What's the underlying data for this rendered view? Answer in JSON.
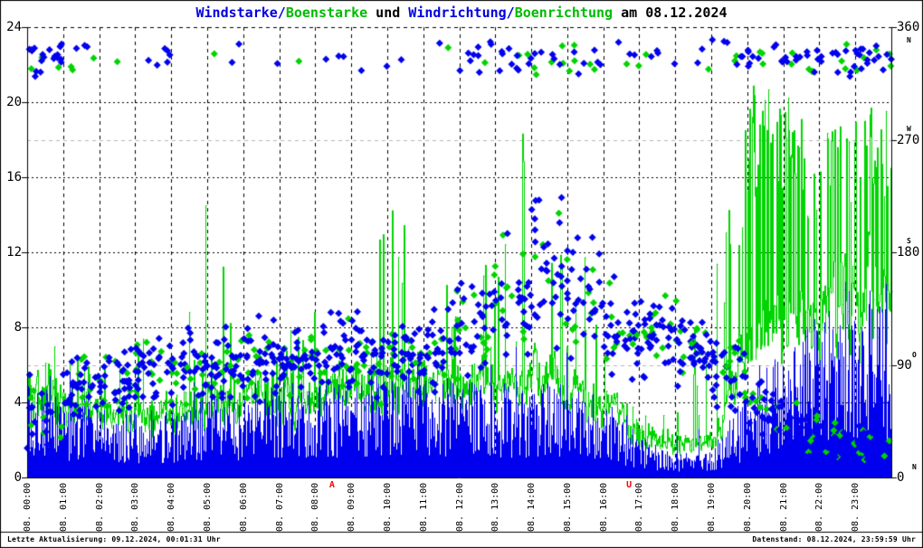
{
  "title": {
    "part1": "Windstarke/",
    "part2": "Boenstarke",
    "part3": " und ",
    "part4": "Windrichtung/",
    "part5": "Boenrichtung",
    "part6": " am 08.12.2024"
  },
  "footer": {
    "left": "Letzte Aktualisierung: 09.12.2024, 00:01:31 Uhr",
    "right": "Datenstand: 08.12.2024, 23:59:59 Uhr"
  },
  "colors": {
    "wind_blue": "#0000ee",
    "gust_green": "#00d400",
    "title_blue": "#0000dd",
    "title_green": "#00bb00",
    "marker_red": "#ff0000",
    "grid_black": "#000000",
    "grid_gray": "#b8b8b8",
    "background": "#ffffff"
  },
  "chart_data": {
    "type": "bar",
    "title": "Windstarke/Boenstarke und Windrichtung/Boenrichtung am 08.12.2024",
    "date": "08.12.2024",
    "x_axis": {
      "range_hours": [
        0,
        24
      ],
      "ticks": [
        "08. 00:00",
        "08. 01:00",
        "08. 02:00",
        "08. 03:00",
        "08. 04:00",
        "08. 05:00",
        "08. 06:00",
        "08. 07:00",
        "08. 08:00",
        "08. 09:00",
        "08. 10:00",
        "08. 11:00",
        "08. 12:00",
        "08. 13:00",
        "08. 14:00",
        "08. 15:00",
        "08. 16:00",
        "08. 17:00",
        "08. 18:00",
        "08. 19:00",
        "08. 20:00",
        "08. 21:00",
        "08. 22:00",
        "08. 23:00"
      ]
    },
    "y_left": {
      "label": "Windstarke/Boenstarke",
      "min": 0,
      "max": 24,
      "ticks": [
        "0",
        "4",
        "8",
        "12",
        "16",
        "20",
        "24"
      ],
      "tick_values": [
        0,
        4,
        8,
        12,
        16,
        20,
        24
      ]
    },
    "y_right": {
      "label": "Windrichtung/Boenrichtung",
      "min": 0,
      "max": 360,
      "ticks": [
        {
          "value": 360,
          "num": "360",
          "dir": "N",
          "dir_pos": "below"
        },
        {
          "value": 270,
          "num": "270",
          "dir": "W",
          "dir_pos": "above"
        },
        {
          "value": 180,
          "num": "180",
          "dir": "S",
          "dir_pos": "above"
        },
        {
          "value": 90,
          "num": "90",
          "dir": "O",
          "dir_pos": "above-right"
        },
        {
          "value": 0,
          "num": "0",
          "dir": "N",
          "dir_pos": "above-right"
        }
      ],
      "gray_gridlines_deg": [
        90,
        270
      ]
    },
    "series": [
      {
        "name": "Windstarke",
        "style": "impulses",
        "color": "#0000ee"
      },
      {
        "name": "Boenstarke",
        "style": "histeps",
        "color": "#00d400"
      },
      {
        "name": "Windrichtung",
        "style": "points-diamond",
        "color": "#0000ee"
      },
      {
        "name": "Boenrichtung",
        "style": "points-diamond",
        "color": "#00d400"
      }
    ],
    "hourly": {
      "hours": [
        0,
        1,
        2,
        3,
        4,
        5,
        6,
        7,
        8,
        9,
        10,
        11,
        12,
        13,
        14,
        15,
        16,
        17,
        18,
        19,
        20,
        21,
        22,
        23
      ],
      "wind_typ": [
        3.5,
        3,
        2.5,
        2.5,
        2.5,
        3,
        3,
        3.5,
        3.5,
        3.5,
        4,
        4,
        3.5,
        3.5,
        3.5,
        3.5,
        3,
        1.5,
        1,
        1.2,
        3,
        5,
        6,
        6.5
      ],
      "wind_max": [
        8,
        6,
        5,
        5,
        5,
        6,
        5,
        6,
        6,
        6,
        7,
        7,
        6,
        7,
        7,
        7,
        5,
        3,
        2.5,
        3,
        6,
        8,
        10,
        11
      ],
      "gust_typ": [
        5,
        4.5,
        4,
        4,
        4,
        5,
        5,
        5.5,
        5.5,
        6,
        6,
        6,
        6,
        6,
        7,
        6,
        5,
        2.5,
        2,
        2.5,
        10,
        11,
        11,
        12
      ],
      "gust_max": [
        8,
        7,
        6,
        7,
        10,
        15,
        8,
        9,
        9,
        12,
        15,
        14,
        9,
        13,
        21,
        16,
        8,
        5,
        4,
        12,
        21,
        21,
        18,
        20
      ],
      "gust_spike_prob": [
        0.05,
        0.04,
        0.03,
        0.03,
        0.04,
        0.05,
        0.03,
        0.05,
        0.05,
        0.06,
        0.06,
        0.06,
        0.04,
        0.08,
        0.1,
        0.08,
        0.04,
        0.02,
        0.02,
        0.05,
        0.3,
        0.3,
        0.3,
        0.3
      ],
      "dir_main_deg": [
        55,
        70,
        75,
        85,
        85,
        90,
        95,
        95,
        100,
        100,
        95,
        105,
        120,
        140,
        170,
        150,
        120,
        115,
        100,
        80,
        50,
        35,
        25,
        25
      ],
      "dir_spread_deg": [
        45,
        35,
        35,
        45,
        40,
        40,
        45,
        35,
        40,
        45,
        45,
        55,
        60,
        70,
        80,
        80,
        50,
        50,
        45,
        50,
        40,
        30,
        25,
        25
      ],
      "dir_north_frac": [
        0.45,
        0.15,
        0.06,
        0.06,
        0.1,
        0.04,
        0.04,
        0.03,
        0.05,
        0.05,
        0.08,
        0.12,
        0.18,
        0.25,
        0.3,
        0.3,
        0.12,
        0.06,
        0.06,
        0.15,
        0.35,
        0.4,
        0.4,
        0.45
      ]
    },
    "north_cluster": {
      "center_deg": 335,
      "spread_deg": 20
    },
    "scatter_points_per_hour": {
      "wind_dir": 34,
      "gust_dir": 11
    },
    "sun_markers": [
      {
        "label": "A",
        "time": "08:28",
        "meaning": "Sonnenaufgang"
      },
      {
        "label": "U",
        "time": "16:43",
        "meaning": "Sonnenuntergang"
      }
    ],
    "grid": {
      "vertical": "hourly-dashed-black",
      "horizontal": "every-4-dotted-black"
    }
  }
}
